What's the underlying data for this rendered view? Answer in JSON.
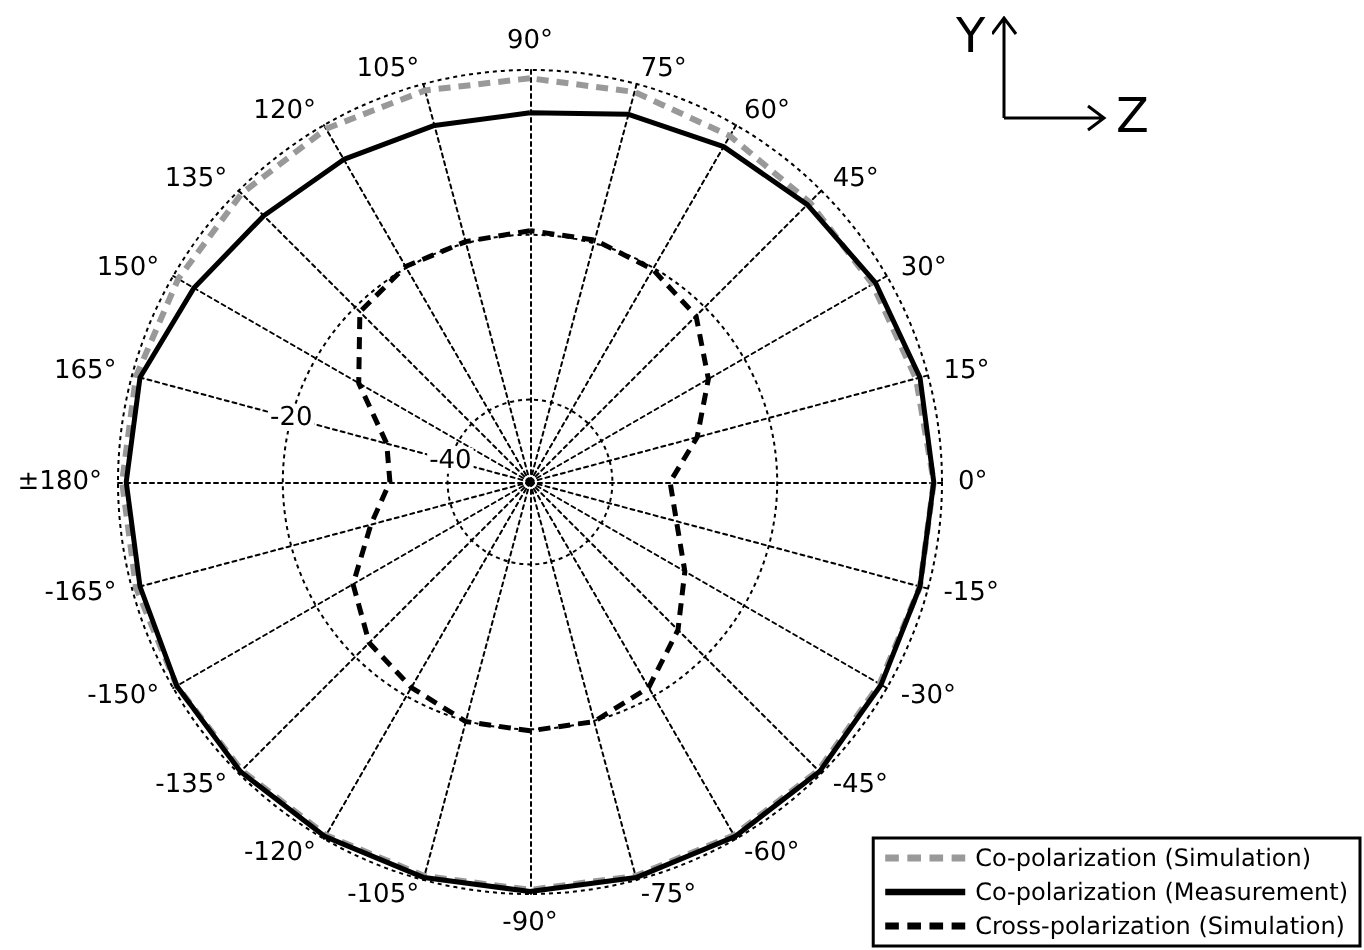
{
  "chart_data": {
    "type": "radar",
    "categories": [
      "90°",
      "75°",
      "60°",
      "45°",
      "30°",
      "15°",
      "0°",
      "-15°",
      "-30°",
      "-45°",
      "-60°",
      "-75°",
      "-90°",
      "-105°",
      "-120°",
      "-135°",
      "-150°",
      "-165°",
      "±180°",
      "165°",
      "150°",
      "135°",
      "120°",
      "105°"
    ],
    "series": [
      {
        "name": "Co-polarization (Simulation)",
        "color": "#999999",
        "line_style": "dashed",
        "values": [
          -1,
          -1,
          -1.5,
          -2,
          -2,
          -1.5,
          -1,
          -1,
          -1,
          -0.5,
          -0.5,
          -0.5,
          -0.5,
          -0.5,
          -0.5,
          -0.5,
          -0.5,
          -0.5,
          -0.5,
          -0.5,
          -0.7,
          -0.5,
          -0.5,
          -0.8
        ]
      },
      {
        "name": "Co-polarization (Measurement)",
        "color": "#000000",
        "line_style": "solid",
        "values": [
          -5.2,
          -3.8,
          -3,
          -2.4,
          -1.6,
          -1,
          -1,
          -1,
          -0.8,
          -0.3,
          -0.3,
          -0.3,
          -0.3,
          -0.3,
          -0.3,
          -0.3,
          -0.5,
          -1,
          -1,
          -1,
          -2.9,
          -4.3,
          -4.8,
          -5.2
        ]
      },
      {
        "name": "Cross-polarization (Simulation)",
        "color": "#000000",
        "line_style": "dashed",
        "values": [
          -19.5,
          -19.6,
          -20.2,
          -21.5,
          -25,
          -29,
          -33,
          -31.6,
          -28.3,
          -24.6,
          -21.2,
          -19.9,
          -19.8,
          -19.9,
          -21.2,
          -22.4,
          -25.2,
          -30,
          -33,
          -32,
          -26,
          -20.8,
          -19.8,
          -19.8
        ]
      }
    ],
    "ylim": [
      -50,
      0
    ],
    "yticks": [
      -40,
      -20
    ],
    "grid": true,
    "legend": "bottom right",
    "marker": "none",
    "annotations": [
      "Y",
      "Z"
    ]
  }
}
